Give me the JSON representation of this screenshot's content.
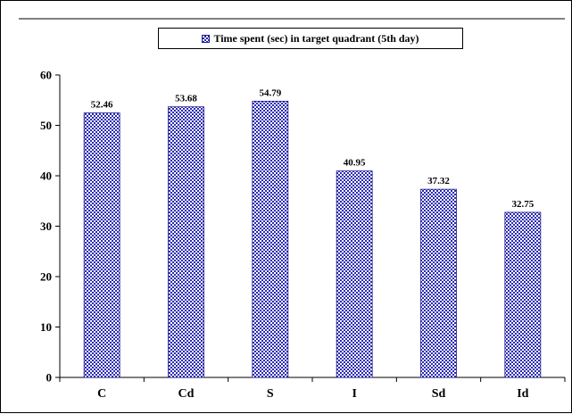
{
  "chart_data": {
    "type": "bar",
    "categories": [
      "C",
      "Cd",
      "S",
      "I",
      "Sd",
      "Id"
    ],
    "series": [
      {
        "name": "Time spent (sec) in target quadrant (5th day)",
        "values": [
          52.46,
          53.68,
          54.79,
          40.95,
          37.32,
          32.75
        ]
      }
    ],
    "value_labels": [
      "52.46",
      "53.68",
      "54.79",
      "40.95",
      "37.32",
      "32.75"
    ],
    "title": "",
    "xlabel": "",
    "ylabel": "",
    "ylim": [
      0,
      60
    ],
    "yticks": [
      0,
      10,
      20,
      30,
      40,
      50,
      60
    ],
    "grid": false,
    "legend_position": "top",
    "colors": {
      "bar": "#2b2bb5",
      "bar_background": "#ffffff",
      "axis": "#000000"
    }
  }
}
